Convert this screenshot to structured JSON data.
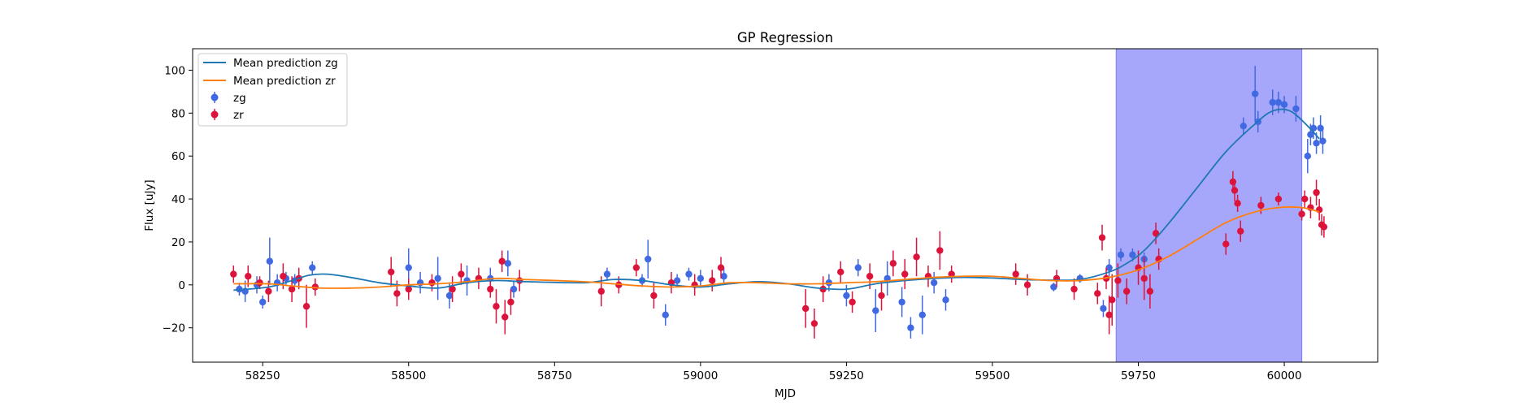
{
  "chart_data": {
    "type": "scatter",
    "title": "GP Regression",
    "xlabel": "MJD",
    "ylabel": "Flux [uJy]",
    "xlim": [
      58130,
      60160
    ],
    "ylim": [
      -36,
      110
    ],
    "xticks": [
      58250,
      58500,
      58750,
      59000,
      59250,
      59500,
      59750,
      60000
    ],
    "yticks": [
      -20,
      0,
      20,
      40,
      60,
      80,
      100
    ],
    "grid": false,
    "legend_position": "top-left",
    "highlight_span": {
      "x": [
        59712,
        60030
      ],
      "color": "#a6a6fb"
    },
    "series": [
      {
        "name": "Mean prediction zg",
        "kind": "line",
        "color": "#1f77b4",
        "x": [
          58200,
          58260,
          58300,
          58330,
          58360,
          58400,
          58450,
          58500,
          58550,
          58600,
          58650,
          58700,
          58800,
          58850,
          58900,
          58950,
          59000,
          59050,
          59100,
          59150,
          59200,
          59250,
          59300,
          59350,
          59400,
          59450,
          59500,
          59550,
          59600,
          59650,
          59700,
          59730,
          59760,
          59800,
          59850,
          59900,
          59950,
          59980,
          60010,
          60040,
          60060
        ],
        "y": [
          -2.5,
          -1,
          2,
          4.5,
          5,
          3.5,
          1,
          -0.5,
          -1.5,
          1,
          2,
          1.5,
          1,
          2.5,
          2,
          0,
          -1,
          0.5,
          1.5,
          0.5,
          -1.5,
          -2,
          0.5,
          2,
          3,
          3.5,
          3.2,
          2.5,
          2.2,
          2.5,
          6,
          10,
          16,
          28,
          45,
          62,
          75,
          81,
          81,
          74,
          68
        ]
      },
      {
        "name": "Mean prediction zr",
        "kind": "line",
        "color": "#ff7f0e",
        "x": [
          58200,
          58260,
          58300,
          58350,
          58400,
          58450,
          58500,
          58550,
          58600,
          58650,
          58700,
          58800,
          58850,
          58900,
          58950,
          59000,
          59050,
          59100,
          59150,
          59200,
          59250,
          59300,
          59350,
          59400,
          59450,
          59500,
          59550,
          59600,
          59650,
          59700,
          59750,
          59800,
          59850,
          59900,
          59950,
          59990,
          60030,
          60060
        ],
        "y": [
          0.5,
          0.5,
          -0.5,
          -1.5,
          -1.5,
          -1,
          0,
          0.5,
          1.5,
          3,
          2.5,
          1.5,
          0.5,
          -0.5,
          -1,
          -0.5,
          1,
          1,
          0.5,
          0.5,
          1,
          1.5,
          2.5,
          3.5,
          4,
          4,
          3,
          2,
          2,
          3.5,
          7,
          13,
          21,
          29,
          34,
          36,
          36,
          34
        ]
      },
      {
        "name": "zg",
        "kind": "errorbar",
        "color": "#4169e1",
        "points": [
          [
            58210,
            -2,
            3
          ],
          [
            58220,
            -3,
            5
          ],
          [
            58240,
            0,
            4
          ],
          [
            58250,
            -8,
            3
          ],
          [
            58262,
            11,
            11
          ],
          [
            58275,
            1,
            4
          ],
          [
            58290,
            3,
            3
          ],
          [
            58305,
            2,
            3
          ],
          [
            58335,
            8,
            3
          ],
          [
            58500,
            8,
            9
          ],
          [
            58520,
            1,
            5
          ],
          [
            58550,
            3,
            10
          ],
          [
            58570,
            -5,
            6
          ],
          [
            58600,
            2,
            7
          ],
          [
            58640,
            3,
            5
          ],
          [
            58670,
            10,
            6
          ],
          [
            58680,
            -2,
            4
          ],
          [
            58840,
            5,
            3
          ],
          [
            58900,
            2,
            3
          ],
          [
            58910,
            12,
            9
          ],
          [
            58940,
            -14,
            5
          ],
          [
            58960,
            2,
            3
          ],
          [
            58980,
            5,
            3
          ],
          [
            59000,
            3,
            4
          ],
          [
            59040,
            4,
            4
          ],
          [
            59220,
            1,
            4
          ],
          [
            59250,
            -5,
            5
          ],
          [
            59270,
            8,
            4
          ],
          [
            59300,
            -12,
            10
          ],
          [
            59320,
            3,
            8
          ],
          [
            59345,
            -8,
            7
          ],
          [
            59360,
            -20,
            5
          ],
          [
            59380,
            -14,
            9
          ],
          [
            59400,
            1,
            5
          ],
          [
            59420,
            -7,
            5
          ],
          [
            59605,
            -1,
            2
          ],
          [
            59650,
            3,
            2
          ],
          [
            59690,
            -11,
            4
          ],
          [
            59700,
            8,
            4
          ],
          [
            59720,
            14,
            3
          ],
          [
            59740,
            14,
            3
          ],
          [
            59760,
            12,
            3
          ],
          [
            59930,
            74,
            4
          ],
          [
            59950,
            89,
            13
          ],
          [
            59955,
            76,
            5
          ],
          [
            59980,
            85,
            6
          ],
          [
            59990,
            85,
            5
          ],
          [
            60000,
            84,
            4
          ],
          [
            60020,
            82,
            6
          ],
          [
            60040,
            60,
            8
          ],
          [
            60045,
            70,
            5
          ],
          [
            60050,
            73,
            5
          ],
          [
            60055,
            66,
            5
          ],
          [
            60062,
            73,
            6
          ],
          [
            60066,
            67,
            6
          ]
        ]
      },
      {
        "name": "zr",
        "kind": "errorbar",
        "color": "#dc143c",
        "points": [
          [
            58200,
            5,
            4
          ],
          [
            58225,
            4,
            5
          ],
          [
            58245,
            1,
            3
          ],
          [
            58260,
            -3,
            5
          ],
          [
            58285,
            4,
            6
          ],
          [
            58300,
            -2,
            6
          ],
          [
            58312,
            3,
            5
          ],
          [
            58325,
            -10,
            10
          ],
          [
            58340,
            -1,
            4
          ],
          [
            58470,
            6,
            7
          ],
          [
            58480,
            -4,
            6
          ],
          [
            58500,
            -2,
            5
          ],
          [
            58540,
            1,
            4
          ],
          [
            58575,
            -2,
            6
          ],
          [
            58590,
            5,
            5
          ],
          [
            58620,
            3,
            5
          ],
          [
            58640,
            -2,
            4
          ],
          [
            58650,
            -10,
            8
          ],
          [
            58660,
            11,
            5
          ],
          [
            58665,
            -15,
            8
          ],
          [
            58675,
            -8,
            6
          ],
          [
            58690,
            2,
            5
          ],
          [
            58830,
            -3,
            7
          ],
          [
            58860,
            0,
            4
          ],
          [
            58890,
            8,
            4
          ],
          [
            58920,
            -5,
            6
          ],
          [
            58950,
            1,
            5
          ],
          [
            58990,
            0,
            5
          ],
          [
            59020,
            2,
            5
          ],
          [
            59035,
            8,
            5
          ],
          [
            59180,
            -11,
            9
          ],
          [
            59195,
            -18,
            7
          ],
          [
            59210,
            -2,
            6
          ],
          [
            59240,
            6,
            5
          ],
          [
            59260,
            -8,
            5
          ],
          [
            59290,
            4,
            6
          ],
          [
            59310,
            -5,
            7
          ],
          [
            59330,
            10,
            6
          ],
          [
            59350,
            5,
            7
          ],
          [
            59370,
            13,
            9
          ],
          [
            59390,
            4,
            5
          ],
          [
            59410,
            16,
            9
          ],
          [
            59430,
            5,
            4
          ],
          [
            59540,
            5,
            5
          ],
          [
            59560,
            0,
            5
          ],
          [
            59610,
            3,
            4
          ],
          [
            59640,
            -2,
            5
          ],
          [
            59680,
            -4,
            5
          ],
          [
            59688,
            22,
            6
          ],
          [
            59695,
            3,
            5
          ],
          [
            59700,
            -14,
            9
          ],
          [
            59705,
            -7,
            12
          ],
          [
            59715,
            2,
            8
          ],
          [
            59730,
            -3,
            6
          ],
          [
            59750,
            8,
            8
          ],
          [
            59760,
            3,
            10
          ],
          [
            59770,
            -3,
            8
          ],
          [
            59780,
            24,
            5
          ],
          [
            59785,
            12,
            5
          ],
          [
            59900,
            19,
            5
          ],
          [
            59912,
            48,
            5
          ],
          [
            59915,
            44,
            5
          ],
          [
            59920,
            38,
            4
          ],
          [
            59925,
            25,
            5
          ],
          [
            59960,
            37,
            4
          ],
          [
            59990,
            40,
            3
          ],
          [
            60030,
            33,
            3
          ],
          [
            60035,
            40,
            4
          ],
          [
            60045,
            36,
            5
          ],
          [
            60055,
            43,
            6
          ],
          [
            60060,
            35,
            5
          ],
          [
            60064,
            28,
            5
          ],
          [
            60068,
            27,
            5
          ]
        ]
      }
    ]
  }
}
